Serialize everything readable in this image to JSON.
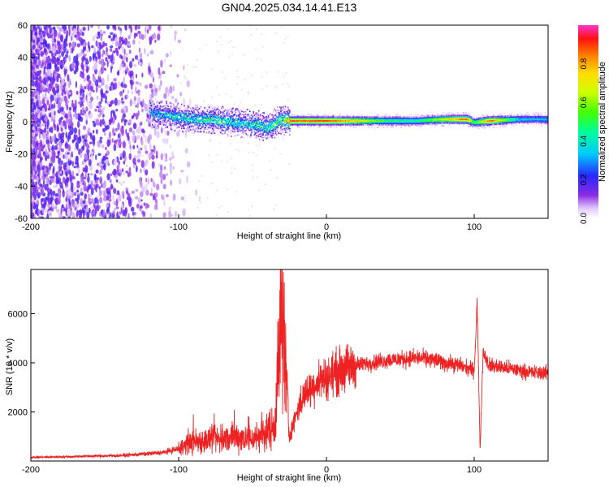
{
  "title": "GN04.2025.034.14.41.E13",
  "chart_data": [
    {
      "type": "heatmap",
      "xlabel": "Height of straight line (km)",
      "ylabel": "Frequency (Hz)",
      "xlim": [
        -200,
        150
      ],
      "ylim": [
        -60,
        60
      ],
      "xticks": [
        "-200",
        "-100",
        "0",
        "100"
      ],
      "yticks": [
        "-60",
        "-40",
        "-20",
        "0",
        "20",
        "40",
        "60"
      ],
      "colorbar": {
        "label": "Normalized spectral amplitude",
        "range": [
          0.0,
          1.0
        ],
        "ticks": [
          "0.0",
          "0.2",
          "0.4",
          "0.6",
          "0.8"
        ]
      },
      "band": [
        {
          "x": -120,
          "freq": 6,
          "amp": 0.3
        },
        {
          "x": -110,
          "freq": 5,
          "amp": 0.35
        },
        {
          "x": -100,
          "freq": 3,
          "amp": 0.4
        },
        {
          "x": -90,
          "freq": 2,
          "amp": 0.4
        },
        {
          "x": -80,
          "freq": 2,
          "amp": 0.45
        },
        {
          "x": -70,
          "freq": 1,
          "amp": 0.45
        },
        {
          "x": -60,
          "freq": 0,
          "amp": 0.4
        },
        {
          "x": -50,
          "freq": -1,
          "amp": 0.4
        },
        {
          "x": -40,
          "freq": -3,
          "amp": 0.45
        },
        {
          "x": -30,
          "freq": 2,
          "amp": 0.5
        },
        {
          "x": -25,
          "freq": 1,
          "amp": 0.9
        },
        {
          "x": 0,
          "freq": 1,
          "amp": 0.9
        },
        {
          "x": 20,
          "freq": 1,
          "amp": 0.75
        },
        {
          "x": 40,
          "freq": 1,
          "amp": 0.5
        },
        {
          "x": 60,
          "freq": 1,
          "amp": 0.45
        },
        {
          "x": 80,
          "freq": 2,
          "amp": 0.7
        },
        {
          "x": 95,
          "freq": 2,
          "amp": 0.9
        },
        {
          "x": 100,
          "freq": 0,
          "amp": 0.5
        },
        {
          "x": 110,
          "freq": 1,
          "amp": 0.9
        },
        {
          "x": 130,
          "freq": 2,
          "amp": 0.35
        },
        {
          "x": 150,
          "freq": 2,
          "amp": 0.35
        }
      ]
    },
    {
      "type": "line",
      "xlabel": "Height of straight line (km)",
      "ylabel": "SNR (10 * v/v)",
      "xlim": [
        -200,
        150
      ],
      "ylim": [
        0,
        7800
      ],
      "xticks": [
        "-200",
        "-100",
        "0",
        "100"
      ],
      "yticks": [
        "2000",
        "4000",
        "6000"
      ],
      "color": "#ee2222",
      "series": [
        {
          "x": [
            -200,
            -180,
            -160,
            -140,
            -120,
            -110,
            -100,
            -90,
            -80,
            -70,
            -60,
            -50,
            -40,
            -35,
            -30,
            -27,
            -25,
            -20,
            -15,
            -10,
            -5,
            0,
            10,
            20,
            30,
            40,
            50,
            60,
            70,
            80,
            90,
            95,
            100,
            102,
            104,
            106,
            110,
            120,
            130,
            140,
            150
          ],
          "y": [
            150,
            170,
            200,
            220,
            300,
            350,
            500,
            800,
            850,
            900,
            1000,
            900,
            1200,
            1500,
            6500,
            3000,
            1000,
            2000,
            2700,
            3000,
            3300,
            3400,
            3700,
            3900,
            4000,
            4100,
            4150,
            4200,
            4150,
            4000,
            3900,
            3800,
            3700,
            6500,
            400,
            4500,
            3900,
            3800,
            3700,
            3600,
            3600
          ]
        }
      ]
    }
  ]
}
